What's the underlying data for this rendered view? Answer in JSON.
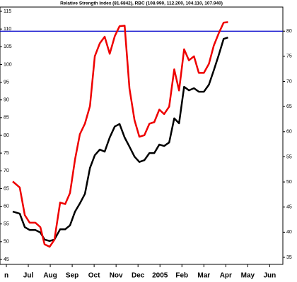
{
  "chart_data": {
    "type": "line",
    "title": "Relative Strength Index (81.6842), RBC (108.990, 112.200, 104.110, 107.940)",
    "x": [
      0.29,
      0.61,
      0.84,
      1.06,
      1.32,
      1.55,
      1.74,
      1.97,
      2.19,
      2.45,
      2.68,
      2.9,
      3.13,
      3.35,
      3.58,
      3.81,
      4.03,
      4.26,
      4.48,
      4.71,
      4.94,
      5.16,
      5.39,
      5.61,
      5.84,
      6.06,
      6.29,
      6.52,
      6.74,
      6.97,
      7.19,
      7.42,
      7.65,
      7.87,
      8.1,
      8.32,
      8.55,
      8.77,
      9,
      9.23,
      9.45,
      9.68,
      9.9,
      10.1
    ],
    "series": [
      {
        "name": "RBC",
        "color": "#000000",
        "values": [
          58.5,
          57.9,
          54.1,
          53.3,
          53.3,
          52.6,
          50.6,
          50.2,
          50.6,
          53.5,
          53.5,
          54.6,
          58.5,
          60.8,
          63.5,
          70.8,
          74.4,
          76,
          75.4,
          79.4,
          82.5,
          83.2,
          79.4,
          76.8,
          74,
          72.5,
          73,
          75,
          75,
          77.4,
          77,
          78,
          84.8,
          83.4,
          93.7,
          92.7,
          93.3,
          92.3,
          92.3,
          94.3,
          98.3,
          102.7,
          107.2,
          107.6
        ]
      },
      {
        "name": "Relative Strength Index",
        "color": "#ee0000",
        "axis": "y2",
        "values": [
          50.1,
          48.9,
          43.4,
          41.9,
          41.9,
          41,
          37.6,
          37.1,
          38.5,
          45.9,
          45.6,
          47.8,
          54.5,
          59.5,
          61.6,
          65.1,
          75,
          77.6,
          78.9,
          75.5,
          79,
          81,
          81.1,
          68.6,
          62.3,
          59,
          59.3,
          61.6,
          61.9,
          64.4,
          63.5,
          65,
          72.4,
          68.2,
          76.4,
          74.2,
          75,
          71.7,
          71.7,
          73.5,
          77.1,
          79.6,
          81.7,
          81.8
        ]
      }
    ],
    "xlim": [
      -0.29,
      12.6
    ],
    "xticks": [
      {
        "value": 0,
        "label": "n"
      },
      {
        "value": 1,
        "label": "Jul"
      },
      {
        "value": 2,
        "label": "Aug"
      },
      {
        "value": 3,
        "label": "Sep"
      },
      {
        "value": 4,
        "label": "Oct"
      },
      {
        "value": 5,
        "label": "Nov"
      },
      {
        "value": 6,
        "label": "Dec"
      },
      {
        "value": 7,
        "label": "2005"
      },
      {
        "value": 8,
        "label": "Feb"
      },
      {
        "value": 9,
        "label": "Mar"
      },
      {
        "value": 10,
        "label": "Apr"
      },
      {
        "value": 11,
        "label": "May"
      },
      {
        "value": 12,
        "label": "Jun"
      }
    ],
    "ylim": [
      43.6,
      116.2
    ],
    "yticks": [
      45,
      50,
      55,
      60,
      65,
      70,
      75,
      80,
      85,
      90,
      95,
      100,
      105,
      110,
      115
    ],
    "y2lim": [
      33.6,
      84.8
    ],
    "y2ticks": [
      35,
      40,
      45,
      50,
      55,
      60,
      65,
      70,
      75,
      80
    ],
    "hline": {
      "value": 80,
      "axis": "y2",
      "color": "#0000cc"
    }
  }
}
